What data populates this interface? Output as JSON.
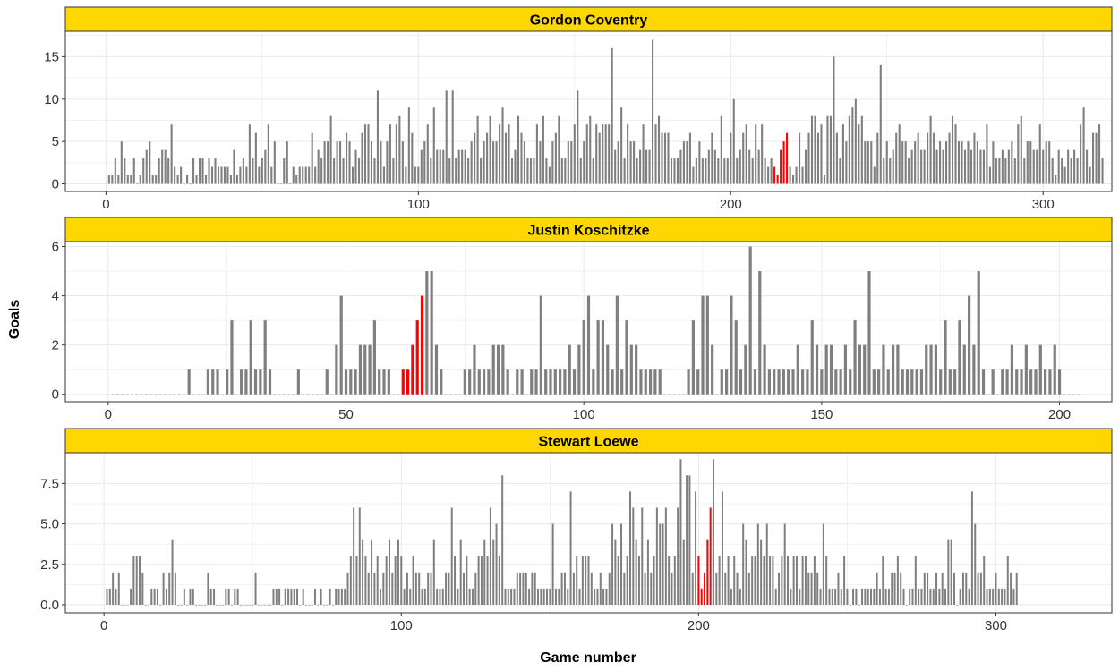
{
  "chart_data": {
    "type": "bar",
    "facet_layout": "vertical",
    "xlabel": "Game number",
    "ylabel": "Goals",
    "colors": {
      "bar": "#7f7f7f",
      "highlight": "#ff0000",
      "strip_fill": "#ffd700",
      "grid": "#ebebeb",
      "panel_border": "#333333"
    },
    "grid": true,
    "legend": "none",
    "panels": [
      {
        "title": "Gordon Coventry",
        "xlim": [
          -13,
          322
        ],
        "ylim": [
          -0.9,
          18
        ],
        "xticks": [
          0,
          100,
          200,
          300
        ],
        "yticks": [
          0,
          5,
          10,
          15
        ],
        "ytick_labels": [
          "0",
          "5",
          "10",
          "15"
        ],
        "highlight_range": [
          214,
          218
        ],
        "values": [
          1,
          1,
          3,
          1,
          5,
          3,
          1,
          1,
          3,
          0,
          1,
          3,
          4,
          5,
          1,
          1,
          3,
          4,
          4,
          3,
          7,
          2,
          1,
          2,
          0,
          1,
          0,
          3,
          1,
          3,
          3,
          1,
          3,
          2,
          3,
          2,
          2,
          2,
          2,
          1,
          4,
          1,
          2,
          3,
          2,
          7,
          3,
          6,
          2,
          3,
          4,
          7,
          2,
          5,
          0,
          0,
          3,
          5,
          0,
          2,
          1,
          2,
          2,
          2,
          2,
          6,
          2,
          4,
          3,
          5,
          5,
          8,
          3,
          5,
          5,
          3,
          6,
          5,
          2,
          4,
          3,
          6,
          7,
          7,
          5,
          3,
          11,
          5,
          2,
          5,
          7,
          3,
          7,
          8,
          5,
          2,
          9,
          6,
          2,
          2,
          4,
          5,
          7,
          3,
          9,
          4,
          4,
          4,
          11,
          3,
          11,
          3,
          4,
          4,
          4,
          3,
          5,
          6,
          8,
          3,
          5,
          6,
          8,
          5,
          5,
          7,
          9,
          6,
          7,
          3,
          4,
          8,
          6,
          5,
          3,
          3,
          3,
          7,
          5,
          8,
          3,
          2,
          5,
          6,
          8,
          3,
          3,
          5,
          5,
          7,
          11,
          3,
          5,
          7,
          8,
          3,
          7,
          6,
          7,
          7,
          7,
          16,
          4,
          5,
          9,
          3,
          7,
          5,
          5,
          3,
          4,
          7,
          4,
          4,
          17,
          7,
          8,
          6,
          6,
          6,
          3,
          3,
          3,
          4,
          5,
          5,
          6,
          2,
          3,
          5,
          3,
          3,
          4,
          6,
          4,
          3,
          8,
          3,
          3,
          6,
          10,
          3,
          4,
          6,
          7,
          4,
          3,
          7,
          4,
          7,
          3,
          2,
          3,
          2,
          1,
          4,
          5,
          6,
          2,
          1,
          2,
          6,
          2,
          4,
          6,
          8,
          8,
          6,
          7,
          1,
          8,
          8,
          15,
          6,
          3,
          7,
          5,
          8,
          9,
          10,
          7,
          8,
          5,
          5,
          5,
          2,
          6,
          14,
          3,
          5,
          3,
          4,
          6,
          7,
          5,
          5,
          3,
          4,
          5,
          6,
          4,
          4,
          6,
          8,
          6,
          4,
          5,
          4,
          5,
          6,
          8,
          7,
          5,
          5,
          4,
          5,
          4,
          6,
          5,
          4,
          4,
          7,
          2,
          5,
          3,
          3,
          4,
          3,
          4,
          5,
          3,
          7,
          8,
          3,
          5,
          5,
          4,
          4,
          7,
          4,
          5,
          5,
          3,
          1,
          4,
          3,
          2,
          4,
          3,
          4,
          3,
          7,
          9,
          4,
          2,
          6,
          6,
          7,
          3
        ]
      },
      {
        "title": "Justin Koschitzke",
        "xlim": [
          -9,
          211
        ],
        "ylim": [
          -0.3,
          6.2
        ],
        "xticks": [
          0,
          50,
          100,
          150,
          200
        ],
        "yticks": [
          0,
          2,
          4,
          6
        ],
        "ytick_labels": [
          "0",
          "2",
          "4",
          "6"
        ],
        "highlight_range": [
          62,
          66
        ],
        "values": [
          0,
          0,
          0,
          0,
          0,
          0,
          0,
          0,
          0,
          0,
          0,
          0,
          0,
          0,
          0,
          0,
          1,
          0,
          0,
          0,
          1,
          1,
          1,
          0,
          1,
          3,
          0,
          1,
          1,
          3,
          1,
          1,
          3,
          1,
          0,
          0,
          0,
          0,
          0,
          1,
          0,
          0,
          0,
          0,
          0,
          1,
          0,
          2,
          4,
          1,
          1,
          1,
          2,
          2,
          2,
          3,
          1,
          1,
          1,
          0,
          0,
          1,
          1,
          2,
          3,
          4,
          5,
          5,
          2,
          1,
          0,
          0,
          0,
          0,
          1,
          1,
          2,
          1,
          1,
          1,
          2,
          2,
          2,
          1,
          0,
          1,
          1,
          0,
          1,
          1,
          4,
          1,
          1,
          1,
          1,
          1,
          2,
          1,
          2,
          3,
          4,
          1,
          3,
          3,
          2,
          1,
          4,
          1,
          3,
          2,
          2,
          1,
          1,
          1,
          1,
          1,
          0,
          0,
          0,
          0,
          0,
          1,
          3,
          1,
          4,
          4,
          2,
          0,
          1,
          1,
          4,
          3,
          1,
          2,
          6,
          1,
          5,
          2,
          1,
          1,
          1,
          1,
          1,
          1,
          2,
          1,
          1,
          3,
          2,
          1,
          2,
          2,
          1,
          1,
          2,
          1,
          3,
          2,
          2,
          5,
          1,
          1,
          2,
          1,
          2,
          2,
          1,
          1,
          1,
          1,
          1,
          2,
          2,
          2,
          1,
          3,
          1,
          1,
          3,
          2,
          4,
          2,
          5,
          1,
          0,
          1,
          0,
          1,
          1,
          2,
          1,
          1,
          2,
          1,
          1,
          2,
          1,
          1,
          2,
          1,
          0,
          0,
          0,
          0
        ]
      },
      {
        "title": "Stewart Loewe",
        "xlim": [
          -13,
          339
        ],
        "ylim": [
          -0.5,
          9.4
        ],
        "xticks": [
          0,
          100,
          200,
          300
        ],
        "yticks": [
          0,
          2.5,
          5,
          7.5
        ],
        "ytick_labels": [
          "0.0",
          "2.5",
          "5.0",
          "7.5"
        ],
        "highlight_range": [
          200,
          204
        ],
        "values": [
          1,
          1,
          2,
          1,
          2,
          0,
          0,
          0,
          1,
          3,
          3,
          3,
          2,
          0,
          0,
          1,
          1,
          1,
          0,
          2,
          1,
          2,
          4,
          2,
          0,
          0,
          1,
          0,
          1,
          1,
          0,
          0,
          0,
          0,
          2,
          1,
          1,
          0,
          0,
          0,
          1,
          1,
          0,
          1,
          1,
          0,
          0,
          0,
          0,
          0,
          2,
          0,
          0,
          0,
          0,
          0,
          1,
          1,
          1,
          0,
          1,
          1,
          1,
          1,
          1,
          0,
          1,
          0,
          0,
          0,
          1,
          0,
          1,
          0,
          0,
          1,
          0,
          1,
          1,
          1,
          1,
          2,
          3,
          6,
          3,
          6,
          4,
          3,
          2,
          4,
          2,
          3,
          1,
          2,
          3,
          4,
          2,
          3,
          4,
          3,
          1,
          2,
          1,
          3,
          2,
          2,
          1,
          1,
          2,
          2,
          4,
          1,
          1,
          1,
          2,
          2,
          6,
          3,
          1,
          4,
          2,
          3,
          1,
          1,
          2,
          3,
          3,
          4,
          3,
          6,
          4,
          5,
          3,
          8,
          1,
          1,
          1,
          1,
          2,
          2,
          2,
          2,
          1,
          2,
          2,
          1,
          1,
          1,
          1,
          1,
          5,
          1,
          1,
          2,
          2,
          1,
          7,
          2,
          3,
          1,
          3,
          3,
          3,
          2,
          1,
          1,
          2,
          1,
          1,
          2,
          5,
          4,
          3,
          5,
          2,
          3,
          7,
          6,
          4,
          3,
          6,
          2,
          4,
          2,
          3,
          6,
          5,
          5,
          6,
          3,
          2,
          3,
          6,
          9,
          4,
          8,
          8,
          2,
          7,
          3,
          1,
          2,
          4,
          6,
          9,
          2,
          3,
          7,
          2,
          3,
          1,
          3,
          2,
          1,
          5,
          4,
          2,
          3,
          3,
          5,
          4,
          3,
          5,
          3,
          3,
          1,
          2,
          3,
          5,
          3,
          1,
          3,
          3,
          1,
          3,
          3,
          2,
          2,
          3,
          2,
          1,
          5,
          3,
          1,
          1,
          1,
          2,
          1,
          3,
          1,
          0,
          1,
          1,
          0,
          1,
          1,
          1,
          1,
          1,
          2,
          1,
          3,
          1,
          1,
          2,
          2,
          3,
          2,
          1,
          0,
          1,
          1,
          3,
          1,
          1,
          2,
          2,
          1,
          1,
          2,
          1,
          2,
          1,
          4,
          4,
          2,
          0,
          1,
          2,
          2,
          1,
          7,
          5,
          2,
          2,
          3,
          1,
          1,
          1,
          2,
          1,
          1,
          1,
          3,
          2,
          1,
          2
        ]
      }
    ]
  }
}
